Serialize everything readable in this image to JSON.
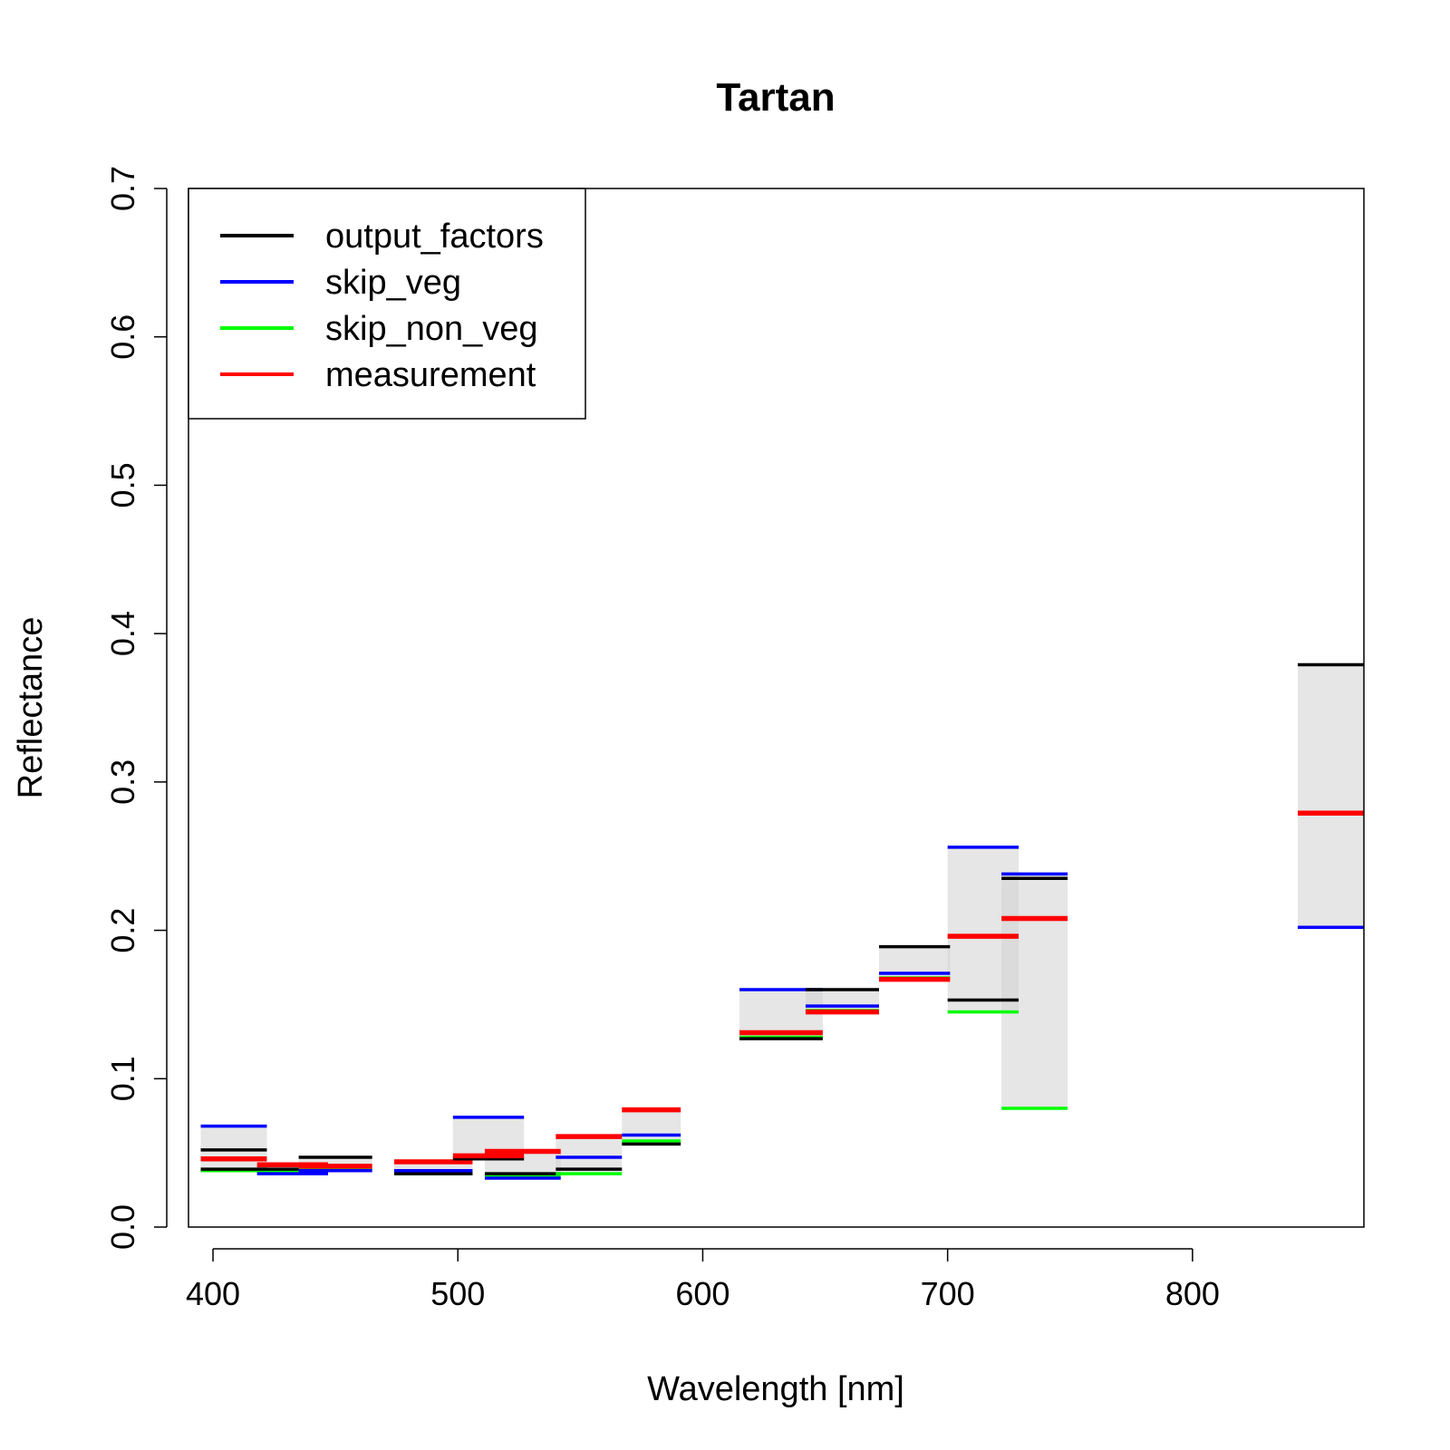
{
  "chart_data": {
    "type": "bar",
    "title": "Tartan",
    "xlabel": "Wavelength [nm]",
    "ylabel": "Reflectance",
    "xlim": [
      390,
      870
    ],
    "ylim": [
      0,
      0.7
    ],
    "x_ticks": [
      400,
      500,
      600,
      700,
      800
    ],
    "y_ticks": [
      0.0,
      0.1,
      0.2,
      0.3,
      0.4,
      0.5,
      0.6,
      0.7
    ],
    "y_tick_labels": [
      "0.0",
      "0.1",
      "0.2",
      "0.3",
      "0.4",
      "0.5",
      "0.6",
      "0.7"
    ],
    "grid": false,
    "legend_position": "top-left",
    "series": [
      {
        "name": "output_factors",
        "color": "#000000"
      },
      {
        "name": "skip_veg",
        "color": "#0000ff"
      },
      {
        "name": "skip_non_veg",
        "color": "#00ff00"
      },
      {
        "name": "measurement",
        "color": "#ff0000"
      }
    ],
    "bands": [
      {
        "x0": 395,
        "x1": 422,
        "output_factors": [
          0.052,
          0.039
        ],
        "skip_veg": 0.068,
        "skip_non_veg": 0.038,
        "measurement": 0.046
      },
      {
        "x0": 418,
        "x1": 447,
        "output_factors": [
          0.039
        ],
        "skip_veg": 0.036,
        "skip_non_veg": 0.037,
        "measurement": 0.042
      },
      {
        "x0": 435,
        "x1": 465,
        "output_factors": [
          0.047
        ],
        "skip_veg": 0.038,
        "skip_non_veg": 0.039,
        "measurement": 0.041
      },
      {
        "x0": 474,
        "x1": 506,
        "output_factors": [
          0.036
        ],
        "skip_veg": 0.038,
        "skip_non_veg": 0.036,
        "measurement": 0.044
      },
      {
        "x0": 498,
        "x1": 527,
        "output_factors": [
          0.046
        ],
        "skip_veg": 0.074,
        "skip_non_veg": 0.047,
        "measurement": 0.048
      },
      {
        "x0": 511,
        "x1": 542,
        "output_factors": [
          0.036
        ],
        "skip_veg": 0.033,
        "skip_non_veg": 0.034,
        "measurement": 0.051
      },
      {
        "x0": 540,
        "x1": 567,
        "output_factors": [
          0.039
        ],
        "skip_veg": 0.047,
        "skip_non_veg": 0.036,
        "measurement": 0.061
      },
      {
        "x0": 567,
        "x1": 591,
        "output_factors": [
          0.056
        ],
        "skip_veg": 0.062,
        "skip_non_veg": 0.058,
        "measurement": 0.079
      },
      {
        "x0": 615,
        "x1": 649,
        "output_factors": [
          0.127
        ],
        "skip_veg": 0.16,
        "skip_non_veg": 0.128,
        "measurement": 0.131
      },
      {
        "x0": 642,
        "x1": 672,
        "output_factors": [
          0.16
        ],
        "skip_veg": 0.149,
        "skip_non_veg": 0.146,
        "measurement": 0.145
      },
      {
        "x0": 672,
        "x1": 701,
        "output_factors": [
          0.189
        ],
        "skip_veg": 0.171,
        "skip_non_veg": 0.168,
        "measurement": 0.167
      },
      {
        "x0": 700,
        "x1": 729,
        "output_factors": [
          0.153
        ],
        "skip_veg": 0.256,
        "skip_non_veg": 0.145,
        "measurement": 0.196
      },
      {
        "x0": 722,
        "x1": 749,
        "output_factors": [
          0.235
        ],
        "skip_veg": 0.238,
        "skip_non_veg": 0.08,
        "measurement": 0.208
      },
      {
        "x0": 843,
        "x1": 870,
        "output_factors": [
          0.379
        ],
        "skip_veg": 0.202,
        "skip_non_veg": 0.279,
        "measurement": 0.279
      }
    ]
  }
}
